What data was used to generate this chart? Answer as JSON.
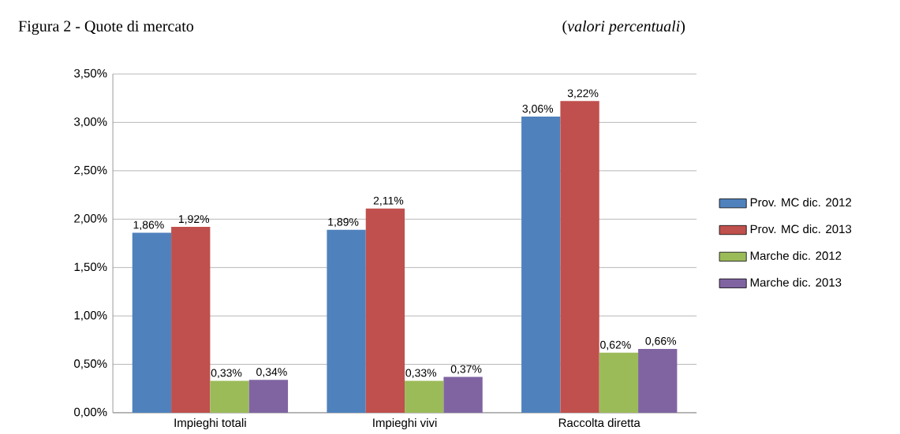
{
  "chart_data": {
    "type": "bar",
    "title": "Figura 2 - Quote di mercato",
    "subtitle": "(*valori percentuali*)",
    "categories": [
      "Impieghi totali",
      "Impieghi vivi",
      "Raccolta diretta"
    ],
    "series": [
      {
        "name": "Prov. MC dic. 2012",
        "color": "#4f81bd",
        "values": [
          1.86,
          1.89,
          3.06
        ],
        "value_labels": [
          "1,86%",
          "1,89%",
          "3,06%"
        ]
      },
      {
        "name": "Prov. MC dic. 2013",
        "color": "#c0504d",
        "values": [
          1.92,
          2.11,
          3.22
        ],
        "value_labels": [
          "1,92%",
          "2,11%",
          "3,22%"
        ]
      },
      {
        "name": "Marche dic. 2012",
        "color": "#9bbb59",
        "values": [
          0.33,
          0.33,
          0.62
        ],
        "value_labels": [
          "0,33%",
          "0,33%",
          "0,62%"
        ]
      },
      {
        "name": "Marche dic. 2013",
        "color": "#8064a2",
        "values": [
          0.34,
          0.37,
          0.66
        ],
        "value_labels": [
          "0,34%",
          "0,37%",
          "0,66%"
        ]
      }
    ],
    "ylim": [
      0,
      3.5
    ],
    "yticks": [
      {
        "value": 0,
        "label": "0,00%"
      },
      {
        "value": 0.5,
        "label": "0,50%"
      },
      {
        "value": 1,
        "label": "1,00%"
      },
      {
        "value": 1.5,
        "label": "1,50%"
      },
      {
        "value": 2,
        "label": "2,00%"
      },
      {
        "value": 2.5,
        "label": "2,50%"
      },
      {
        "value": 3,
        "label": "3,00%"
      },
      {
        "value": 3.5,
        "label": "3,50%"
      }
    ],
    "grid": "y",
    "legend": "right"
  }
}
